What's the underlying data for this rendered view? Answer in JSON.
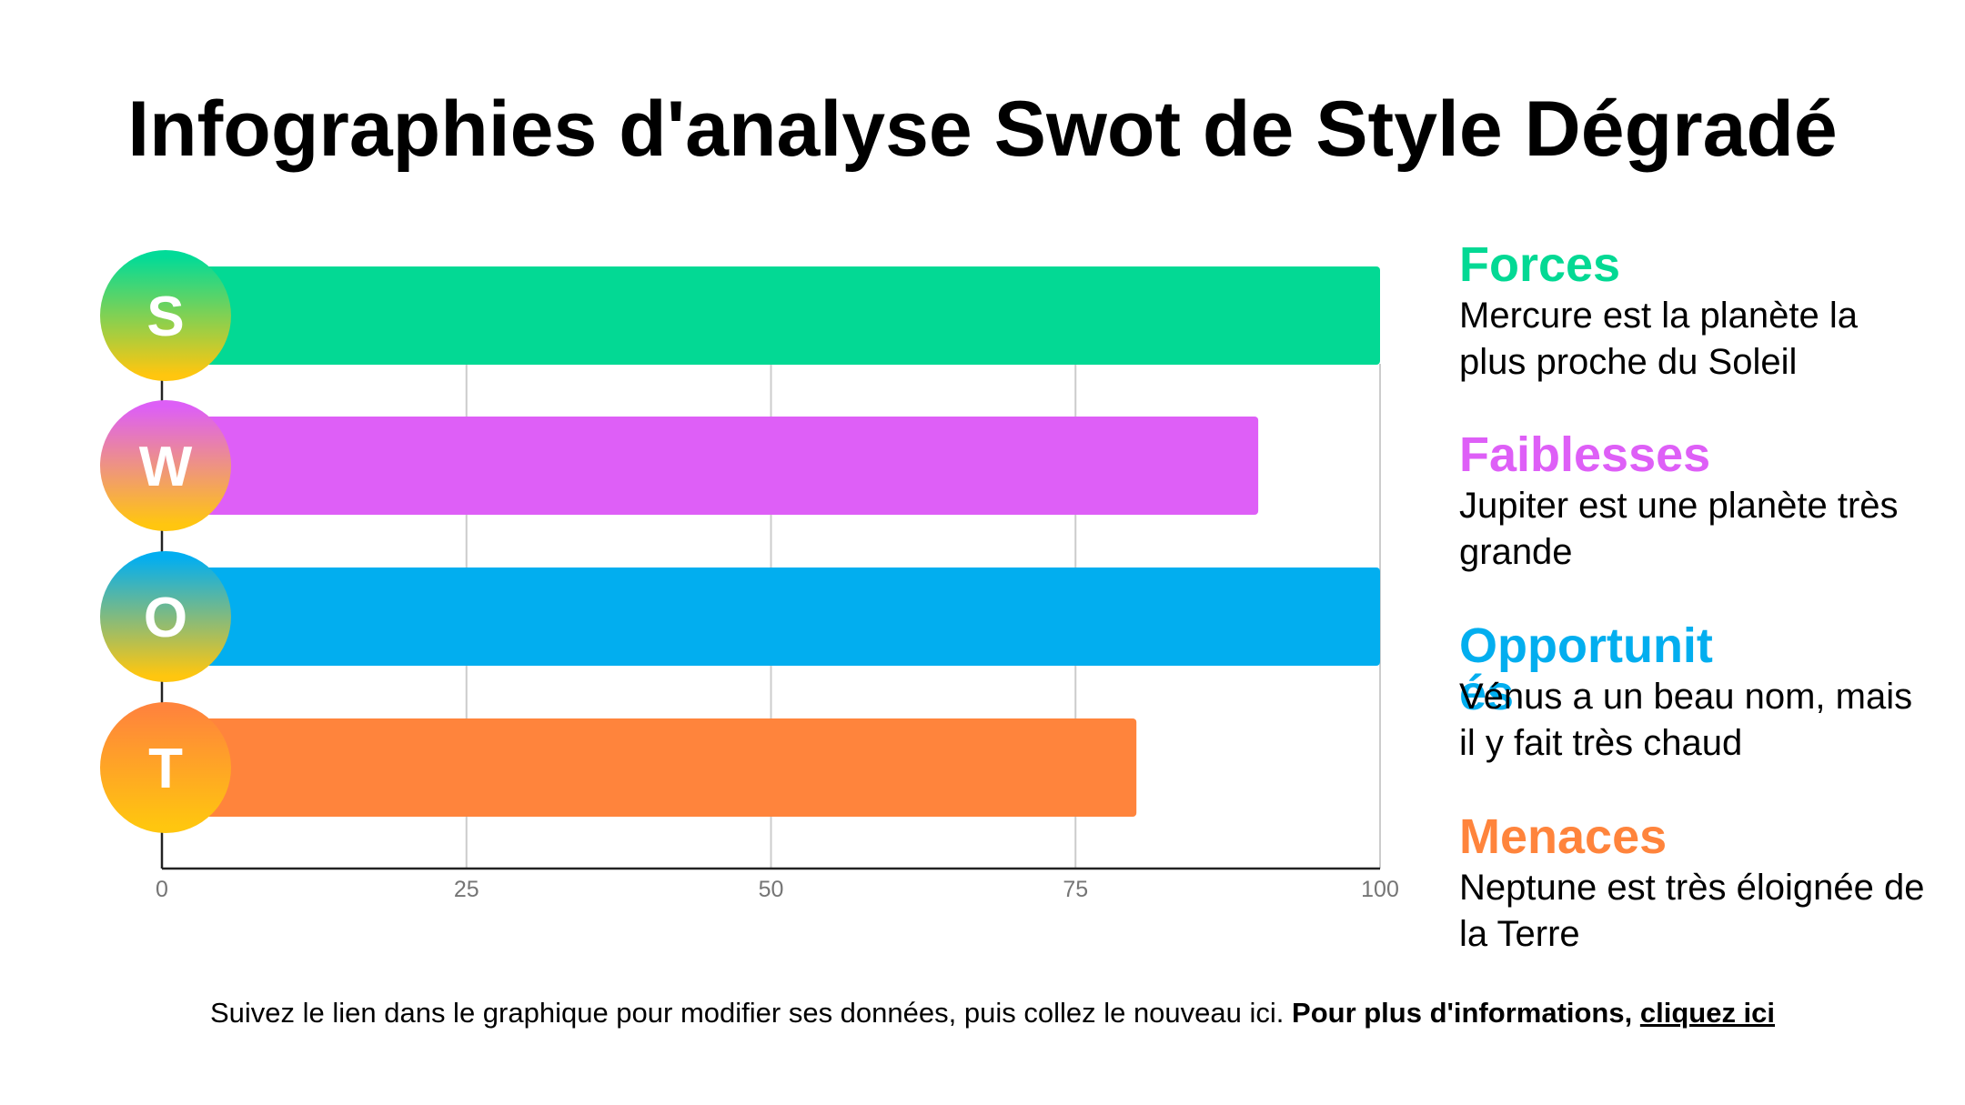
{
  "title": "Infographies d'analyse Swot de Style Dégradé",
  "chart_data": {
    "type": "bar",
    "orientation": "horizontal",
    "categories": [
      "S",
      "W",
      "O",
      "T"
    ],
    "values": [
      100,
      90,
      100,
      80
    ],
    "xlim": [
      0,
      100
    ],
    "xticks": [
      0,
      25,
      50,
      75,
      100
    ],
    "grid": true,
    "bar_colors": [
      "#03d994",
      "#de5ff7",
      "#02aeef",
      "#ff843c"
    ],
    "badge_gradients": [
      [
        "#02db98",
        "#ffc60f"
      ],
      [
        "#dd5ff6",
        "#ffc60f"
      ],
      [
        "#03aef0",
        "#ffc60f"
      ],
      [
        "#ff843c",
        "#ffc60f"
      ]
    ]
  },
  "legend": [
    {
      "title": "Forces",
      "desc": "Mercure est la planète la plus proche du Soleil",
      "color": "#03d994"
    },
    {
      "title": "Faiblesses",
      "desc": "Jupiter est une planète très grande",
      "color": "#de5ff7"
    },
    {
      "title": "Opportunités",
      "desc": "Vénus a un beau nom, mais il y fait très chaud",
      "color": "#02aeef"
    },
    {
      "title": "Menaces",
      "desc": "Neptune est très éloignée de la Terre",
      "color": "#ff843c"
    }
  ],
  "footer": {
    "text": "Suivez le lien dans le graphique pour modifier ses données, puis collez le nouveau ici.",
    "bold": "Pour plus d'informations,",
    "link": "cliquez ici"
  }
}
